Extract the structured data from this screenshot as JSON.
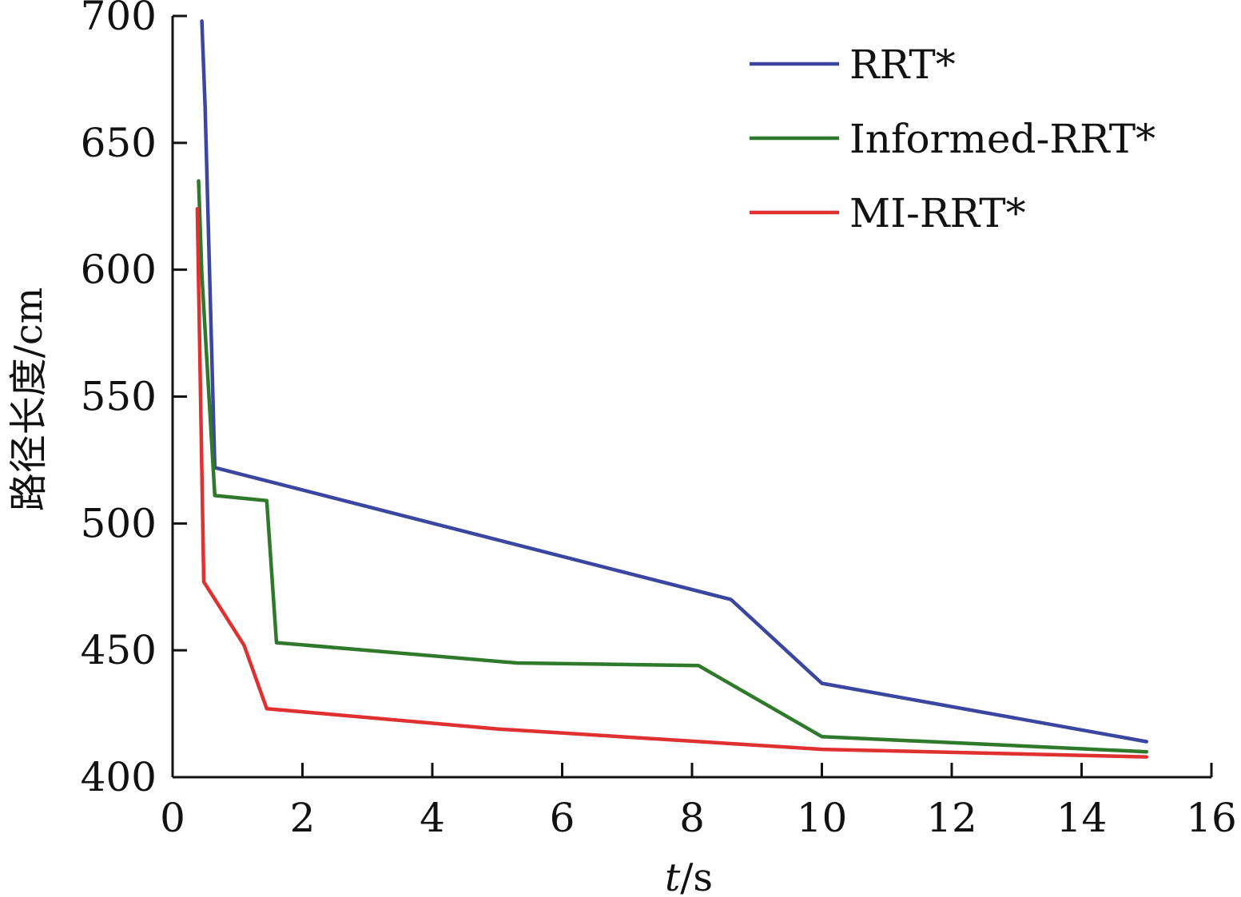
{
  "chart_data": {
    "type": "line",
    "xlabel_italic": "t",
    "xlabel_rest": "/s",
    "ylabel": "路径长度/cm",
    "xlim": [
      0,
      16
    ],
    "ylim": [
      400,
      700
    ],
    "x_ticks": [
      0,
      2,
      4,
      6,
      8,
      10,
      12,
      14,
      16
    ],
    "y_ticks": [
      400,
      450,
      500,
      550,
      600,
      650,
      700
    ],
    "grid": false,
    "legend_position": "top-right",
    "series": [
      {
        "name": "RRT*",
        "color": "#3a46a0",
        "x": [
          0.45,
          0.5,
          0.65,
          8.6,
          10.0,
          15.0
        ],
        "y": [
          698,
          665,
          522,
          470,
          437,
          414
        ]
      },
      {
        "name": "Informed-RRT*",
        "color": "#2f7a2a",
        "x": [
          0.4,
          0.45,
          0.65,
          1.45,
          1.6,
          5.3,
          8.1,
          10.0,
          15.0
        ],
        "y": [
          635,
          598,
          511,
          509,
          453,
          445,
          444,
          416,
          410
        ]
      },
      {
        "name": "MI-RRT*",
        "color": "#e03030",
        "x": [
          0.38,
          0.48,
          1.1,
          1.45,
          5.0,
          10.0,
          15.0
        ],
        "y": [
          624,
          477,
          452,
          427,
          419,
          411,
          408
        ]
      }
    ]
  }
}
